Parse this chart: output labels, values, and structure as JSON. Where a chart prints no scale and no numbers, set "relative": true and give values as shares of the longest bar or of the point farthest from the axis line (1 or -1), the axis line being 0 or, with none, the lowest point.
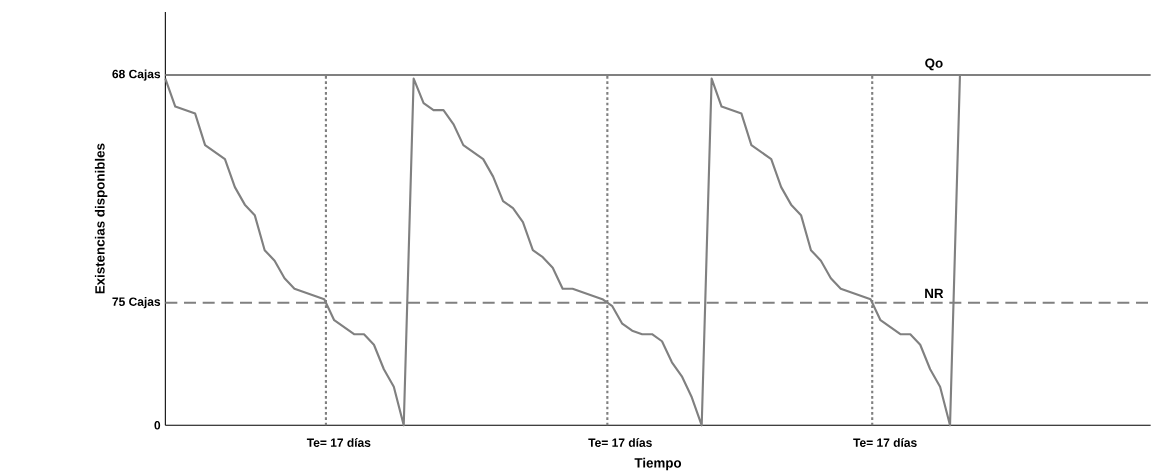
{
  "chart_data": {
    "type": "line",
    "relative": true,
    "xlabel": "Tiempo",
    "ylabel": "Existencias disponibles",
    "categories": [
      null,
      null,
      null,
      null,
      null,
      null,
      null,
      null,
      null,
      null,
      null,
      null,
      null,
      null,
      null,
      null,
      null,
      null,
      null,
      null,
      null,
      null,
      null,
      null,
      null,
      null,
      null,
      null,
      null,
      null,
      null,
      null,
      null,
      null,
      null,
      null,
      null,
      null,
      null,
      null,
      null,
      null,
      null,
      null,
      null,
      null,
      null,
      null,
      null,
      null,
      null,
      null,
      null,
      null,
      null,
      null,
      null,
      null,
      null,
      null,
      null,
      null,
      null,
      null,
      null,
      null,
      null,
      null,
      null,
      null,
      null,
      null,
      null,
      null,
      null,
      null,
      null,
      null,
      null,
      null,
      null
    ],
    "grid": false,
    "marker": "none",
    "line_style": "solid",
    "series": [
      {
        "color": "#808080",
        "values": [
          0.99,
          0.91,
          0.9,
          0.89,
          0.8,
          0.78,
          0.76,
          0.68,
          0.63,
          0.6,
          0.5,
          0.47,
          0.42,
          0.39,
          0.38,
          0.37,
          0.36,
          0.3,
          0.28,
          0.26,
          0.26,
          0.23,
          0.16,
          0.11,
          0,
          0.99,
          0.92,
          0.9,
          0.9,
          0.86,
          0.8,
          0.78,
          0.76,
          0.71,
          0.64,
          0.62,
          0.58,
          0.5,
          0.48,
          0.45,
          0.39,
          0.39,
          0.38,
          0.37,
          0.36,
          0.34,
          0.29,
          0.27,
          0.26,
          0.26,
          0.24,
          0.18,
          0.14,
          0.08,
          0,
          0.99,
          0.91,
          0.9,
          0.89,
          0.8,
          0.78,
          0.76,
          0.68,
          0.63,
          0.6,
          0.5,
          0.47,
          0.42,
          0.39,
          0.38,
          0.37,
          0.36,
          0.3,
          0.28,
          0.26,
          0.26,
          0.23,
          0.16,
          0.11,
          0,
          1
        ]
      }
    ],
    "ref_lines": [
      {
        "axis": "y",
        "value": 1,
        "label": "Qo",
        "color": "#808080",
        "line_style": "solid"
      },
      {
        "axis": "y",
        "value": 0.35,
        "label": "NR",
        "color": "#808080",
        "line_style": "dashed"
      }
    ],
    "annotations": [
      "68 Cajas",
      "75 Cajas",
      "0",
      "Te= 17 días",
      "Te= 17 días",
      "Te= 17 días"
    ]
  }
}
